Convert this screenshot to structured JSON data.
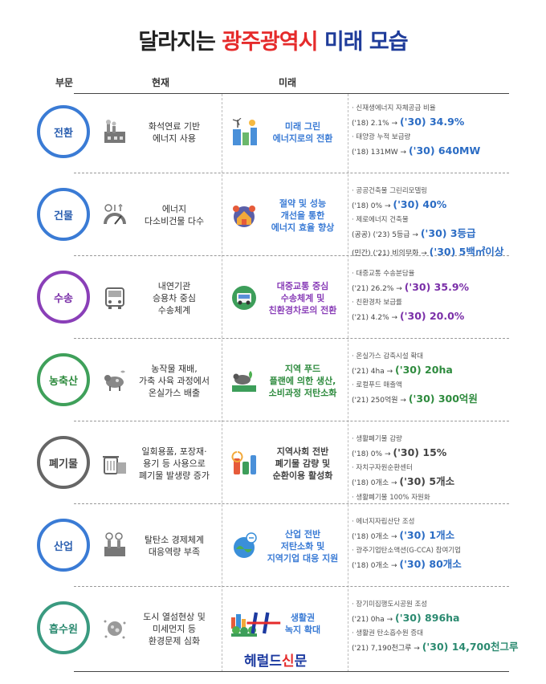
{
  "title": {
    "part1": "달라지는",
    "part2": "광주광역시",
    "part3": "미래 모습"
  },
  "headers": {
    "sector": "부문",
    "current": "현재",
    "future": "미래"
  },
  "rows": [
    {
      "sector": "전환",
      "color": "#3a7bd5",
      "current_text": "화석연료 기반\n에너지 사용",
      "future_text": "미래 그린\n에너지로의 전환",
      "future_color": "#3a7bd5",
      "stats": [
        {
          "label": "신재생에너지 자체공급 비율",
          "before": "('18) 2.1% →",
          "after": "('30) 34.9%"
        },
        {
          "label": "태양광 누적 보급량",
          "before": "('18) 131MW →",
          "after": "('30) 640MW"
        }
      ]
    },
    {
      "sector": "건물",
      "color": "#3a7bd5",
      "current_text": "에너지\n다소비건물 다수",
      "future_text": "절약 및 성능\n개선을 통한\n에너지 효율 향상",
      "future_color": "#3a7bd5",
      "stats": [
        {
          "label": "공공건축물 그린리모델링",
          "before": "('18) 0% →",
          "after": "('30) 40%"
        },
        {
          "label": "제로에너지 건축물",
          "before": "(공공) ('23) 5등급 →",
          "after": "('30) 3등급"
        },
        {
          "label": "",
          "before": "(민간) ('21) 비의무화 →",
          "after": "('30) 5백㎡이상"
        }
      ]
    },
    {
      "sector": "수송",
      "color": "#8a3fb8",
      "current_text": "내연기관\n승용차 중심\n수송체계",
      "future_text": "대중교통 중심\n수송체계 및\n친환경차로의 전환",
      "future_color": "#8a3fb8",
      "stats": [
        {
          "label": "대중교통 수송분담율",
          "before": "('21) 26.2% →",
          "after": "('30) 35.9%"
        },
        {
          "label": "친환경차 보급률",
          "before": "('21) 4.2% →",
          "after": "('30) 20.0%"
        }
      ]
    },
    {
      "sector": "농축산",
      "color": "#3fa05a",
      "current_text": "농작물 재배,\n가축 사육 과정에서\n온실가스 배출",
      "future_text": "지역 푸드\n플랜에 의한 생산,\n소비과정 저탄소화",
      "future_color": "#2e8b3e",
      "stats": [
        {
          "label": "온실가스 감축시설 확대",
          "before": "('21) 4ha →",
          "after": "('30) 20ha"
        },
        {
          "label": "로컬푸드 매출액",
          "before": "('21) 250억원 →",
          "after": "('30) 300억원"
        }
      ]
    },
    {
      "sector": "폐기물",
      "color": "#666666",
      "current_text": "일회용품, 포장재·\n용기 등 사용으로\n폐기물 발생량 증가",
      "future_text": "지역사회 전반\n폐기물 감량 및\n순환이용 활성화",
      "future_color": "#444444",
      "stats": [
        {
          "label": "생활폐기물 감량",
          "before": "('18) 0% →",
          "after": "('30) 15%"
        },
        {
          "label": "자치구자원순환센터",
          "before": "('18) 0개소 →",
          "after": "('30) 5개소"
        },
        {
          "label": "생활폐기물 100% 자원화",
          "before": "",
          "after": ""
        }
      ]
    },
    {
      "sector": "산업",
      "color": "#3a7bd5",
      "current_text": "탈탄소 경제체계\n대응역량 부족",
      "future_text": "산업 전반\n저탄소화 및\n지역기업 대응 지원",
      "future_color": "#3a7bd5",
      "stats": [
        {
          "label": "에너지자립산단 조성",
          "before": "('18) 0개소 →",
          "after": "('30) 1개소"
        },
        {
          "label": "광주기업탄소액션(G-CCA) 참여기업",
          "before": "('18) 0개소 →",
          "after": "('30) 80개소"
        }
      ]
    },
    {
      "sector": "흡수원",
      "color": "#3a9a80",
      "current_text": "도시 열섬현상 및\n미세먼지 등\n환경문제 심화",
      "future_text": "생활권\n녹지 확대",
      "future_color": "#3a7bd5",
      "stats": [
        {
          "label": "장기미집행도시공원 조성",
          "before": "('21) 0ha →",
          "after": "('30) 896ha"
        },
        {
          "label": "생활권 탄소흡수원 증대",
          "before": "('21) 7,190천그루 →",
          "after": "('30) 14,700천그루"
        }
      ]
    }
  ],
  "watermark": {
    "text_blue1": "헤럴드",
    "text_red": "신",
    "text_blue2": "문"
  }
}
